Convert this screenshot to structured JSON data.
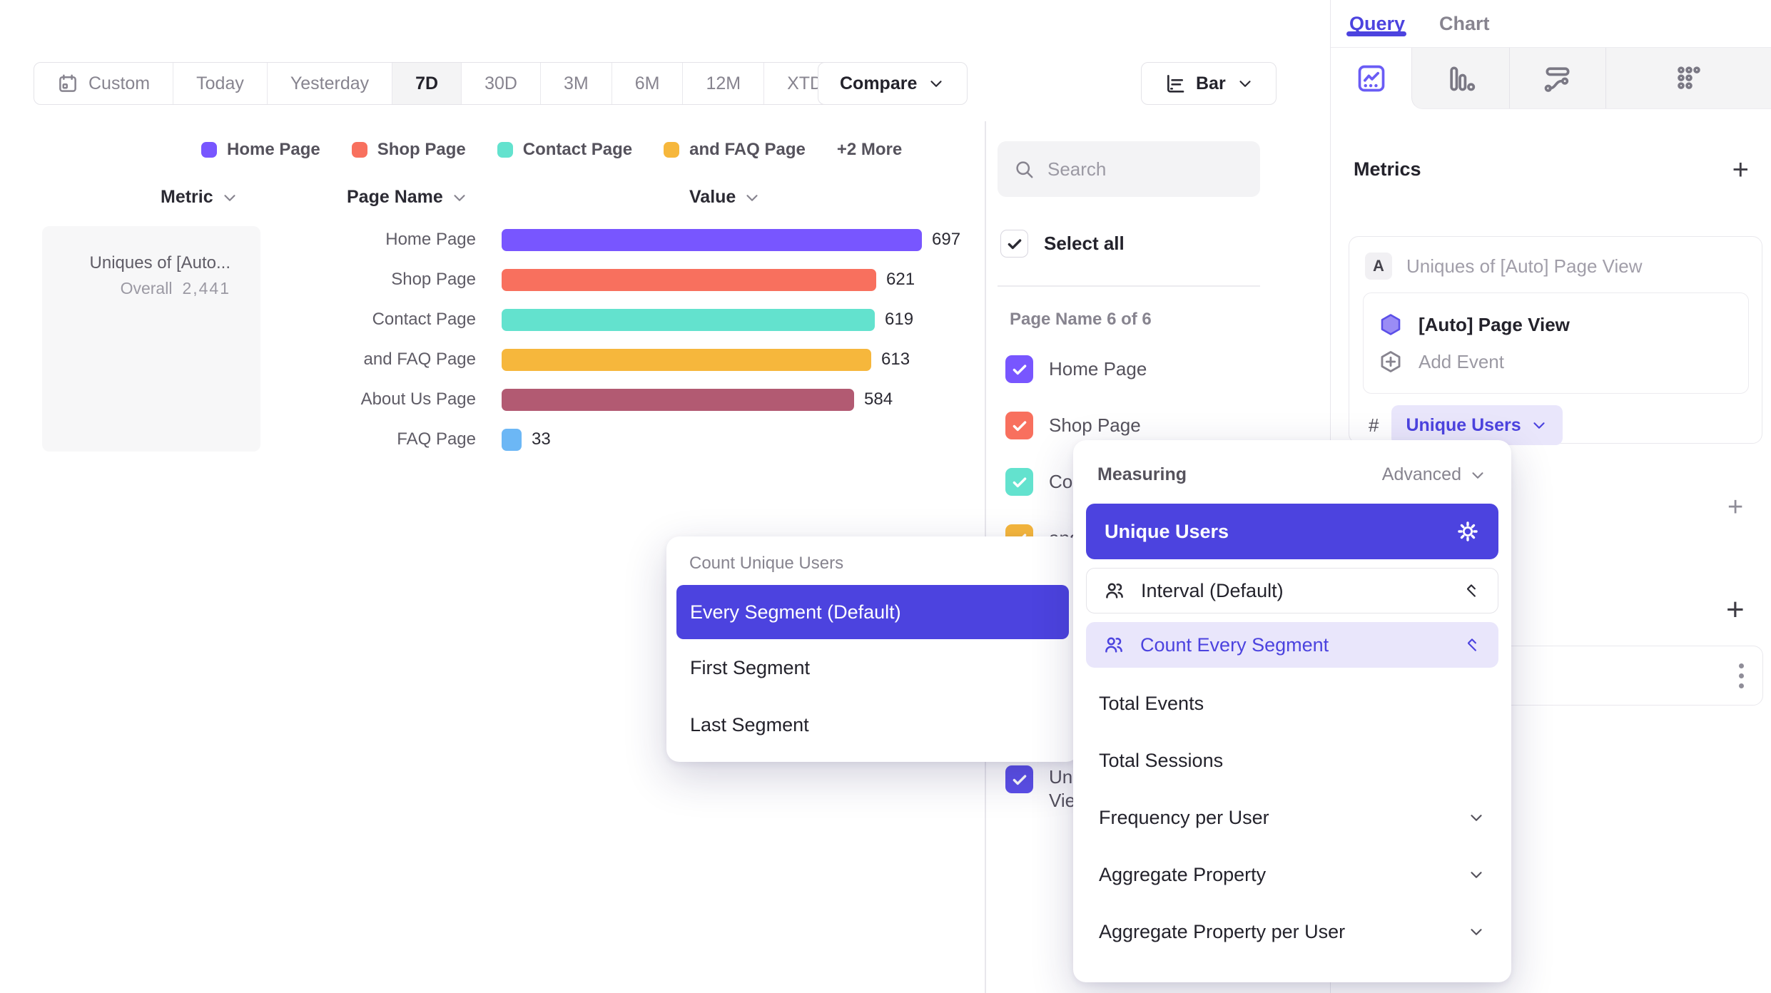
{
  "toolbar": {
    "date_ranges": [
      "Custom",
      "Today",
      "Yesterday",
      "7D",
      "30D",
      "3M",
      "6M",
      "12M",
      "XTD"
    ],
    "selected_range": "7D",
    "compare_label": "Compare",
    "chart_type_label": "Bar",
    "icons": [
      "calendar-icon",
      "chevron-down-icon",
      "bar-chart-icon"
    ]
  },
  "legend": {
    "items": [
      {
        "label": "Home Page",
        "color": "#7856FF"
      },
      {
        "label": "Shop Page",
        "color": "#F8705E"
      },
      {
        "label": "Contact Page",
        "color": "#63E2CE"
      },
      {
        "label": "and FAQ Page",
        "color": "#F6B73C"
      }
    ],
    "more_label": "+2 More"
  },
  "table": {
    "metric_header": "Metric",
    "page_name_header": "Page Name",
    "value_header": "Value"
  },
  "metric_card": {
    "title": "Uniques of [Auto...",
    "overall_label": "Overall",
    "overall_value": "2,441"
  },
  "chart_data": {
    "type": "bar",
    "orientation": "horizontal",
    "title": "Uniques of [Auto] Page View",
    "categories": [
      "Home Page",
      "Shop Page",
      "Contact Page",
      "and FAQ Page",
      "About Us Page",
      "FAQ Page"
    ],
    "values": [
      697,
      621,
      619,
      613,
      584,
      33
    ],
    "colors": [
      "#7856FF",
      "#F8705E",
      "#63E2CE",
      "#F6B73C",
      "#B25A72",
      "#6CB7F5"
    ],
    "overall_total": "2,441",
    "xlim": [
      0,
      697
    ],
    "value_labels_shown": true,
    "grid": false,
    "legend_position": "top"
  },
  "filters": {
    "search_placeholder": "Search",
    "select_all_label": "Select all",
    "select_all_checked": true,
    "group_label": "Page Name 6 of 6",
    "items": [
      {
        "label": "Home Page",
        "color": "#7856FF",
        "checked": true
      },
      {
        "label": "Shop Page",
        "color": "#F8705E",
        "checked": true
      },
      {
        "label": "Contact Page",
        "color": "#63E2CE",
        "checked": true
      },
      {
        "label": "and FAQ Page",
        "color": "#F6B73C",
        "checked": true
      },
      {
        "label": "About Us Page",
        "color": "#B25A72",
        "checked": true
      },
      {
        "label": "FAQ Page",
        "color": "#6CB7F5",
        "checked": true
      }
    ],
    "extra_item": {
      "label_lines": [
        "Uni",
        "Vie"
      ],
      "color": "#5B4FE8",
      "checked": true
    }
  },
  "query_panel": {
    "tabs": [
      {
        "label": "Query",
        "active": true
      },
      {
        "label": "Chart",
        "active": false
      }
    ],
    "chart_type_tabs": [
      "insights-icon",
      "funnels-icon",
      "flows-icon",
      "retention-icon"
    ],
    "metrics_title": "Metrics",
    "metric": {
      "badge": "A",
      "title": "Uniques of [Auto] Page View",
      "event_name": "[Auto] Page View",
      "add_event_label": "Add Event",
      "aggregation_prefix": "#",
      "aggregation_label": "Unique Users"
    }
  },
  "measuring_menu": {
    "title": "Measuring",
    "advanced_label": "Advanced",
    "selected_option": "Unique Users",
    "sub_options": [
      {
        "label": "Interval (Default)",
        "icon": "people-icon",
        "highlighted": false
      },
      {
        "label": "Count Every Segment",
        "icon": "people-icon",
        "highlighted": true
      }
    ],
    "options": [
      {
        "label": "Total Events",
        "expandable": false
      },
      {
        "label": "Total Sessions",
        "expandable": false
      },
      {
        "label": "Frequency per User",
        "expandable": true
      },
      {
        "label": "Aggregate Property",
        "expandable": true
      },
      {
        "label": "Aggregate Property per User",
        "expandable": true
      }
    ]
  },
  "count_menu": {
    "title": "Count Unique Users",
    "options": [
      {
        "label": "Every Segment (Default)",
        "selected": true
      },
      {
        "label": "First Segment",
        "selected": false
      },
      {
        "label": "Last Segment",
        "selected": false
      }
    ]
  },
  "colors": {
    "accent_indigo": "#4C43DF",
    "accent_purple": "#7856FF",
    "pill_bg": "#E9E6FB"
  }
}
